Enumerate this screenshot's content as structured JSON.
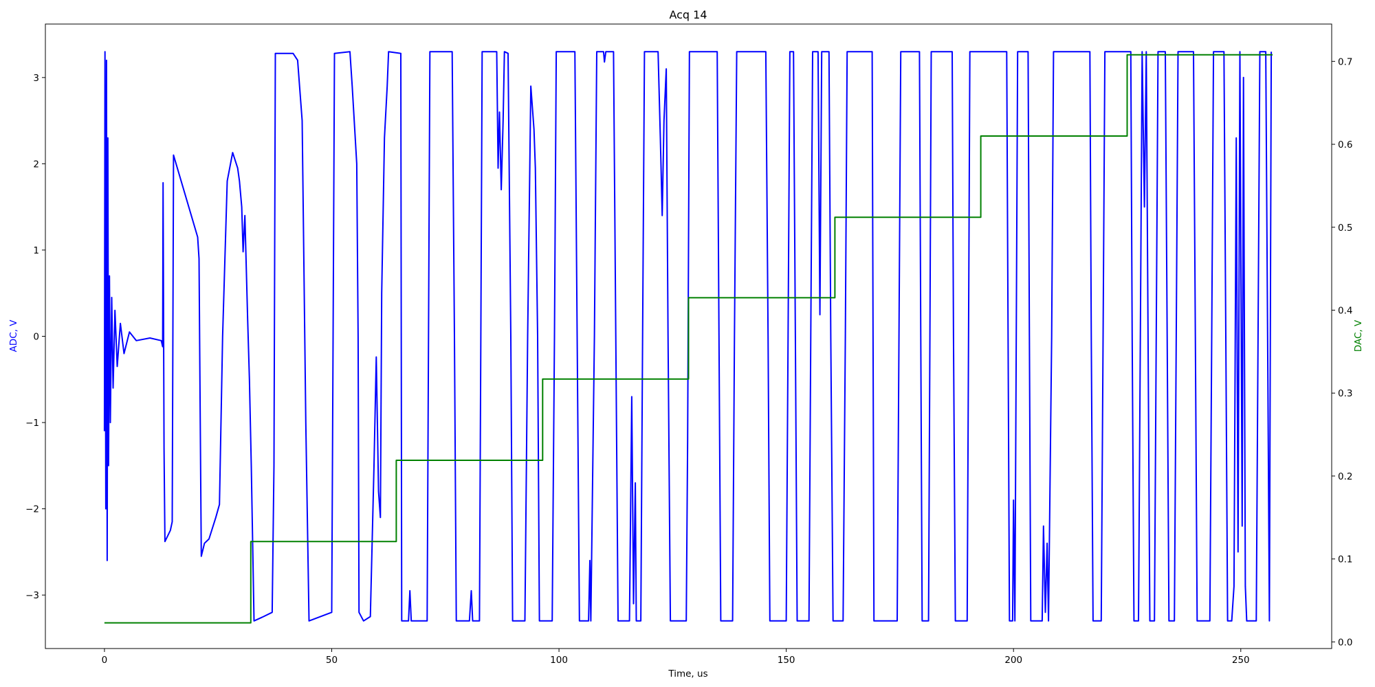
{
  "chart_data": {
    "type": "line",
    "title": "Acq 14",
    "xlabel": "Time, us",
    "ylabel_left": "ADC, V",
    "ylabel_right": "DAC, V",
    "xlim": [
      -13,
      270
    ],
    "ylim_left": [
      -3.62,
      3.62
    ],
    "ylim_right": [
      -0.008,
      0.745
    ],
    "x_ticks": [
      0,
      50,
      100,
      150,
      200,
      250
    ],
    "y_left_ticks": [
      -3,
      -2,
      -1,
      0,
      1,
      2,
      3
    ],
    "y_right_ticks": [
      0.0,
      0.1,
      0.2,
      0.3,
      0.4,
      0.5,
      0.6,
      0.7
    ],
    "x_tick_labels": [
      "0",
      "50",
      "100",
      "150",
      "200",
      "250"
    ],
    "y_left_tick_labels": [
      "−3",
      "−2",
      "−1",
      "0",
      "1",
      "2",
      "3"
    ],
    "y_right_tick_labels": [
      "0.0",
      "0.1",
      "0.2",
      "0.3",
      "0.4",
      "0.5",
      "0.6",
      "0.7"
    ],
    "grid": false,
    "colors": {
      "adc": "#0000ff",
      "dac": "#008000"
    },
    "series": [
      {
        "axis": "left",
        "points": [
          [
            0,
            -1.1
          ],
          [
            0.12,
            3.3
          ],
          [
            0.3,
            -2.0
          ],
          [
            0.45,
            3.2
          ],
          [
            0.6,
            -2.6
          ],
          [
            0.75,
            2.3
          ],
          [
            0.9,
            -1.5
          ],
          [
            1.1,
            0.7
          ],
          [
            1.3,
            -1.0
          ],
          [
            1.6,
            0.45
          ],
          [
            1.9,
            -0.6
          ],
          [
            2.3,
            0.3
          ],
          [
            2.8,
            -0.35
          ],
          [
            3.5,
            0.15
          ],
          [
            4.3,
            -0.2
          ],
          [
            5.5,
            0.05
          ],
          [
            7,
            -0.05
          ],
          [
            10,
            -0.02
          ],
          [
            12.5,
            -0.05
          ],
          [
            12.8,
            -0.12
          ],
          [
            12.9,
            1.78
          ],
          [
            13.1,
            -1.3
          ],
          [
            13.3,
            -2.38
          ],
          [
            14.5,
            -2.25
          ],
          [
            14.9,
            -2.15
          ],
          [
            15.2,
            2.1
          ],
          [
            20.5,
            1.15
          ],
          [
            20.8,
            0.9
          ],
          [
            21.0,
            -0.5
          ],
          [
            21.3,
            -2.55
          ],
          [
            22,
            -2.4
          ],
          [
            23,
            -2.35
          ],
          [
            24.5,
            -2.1
          ],
          [
            25.3,
            -1.95
          ],
          [
            26,
            0
          ],
          [
            27,
            1.8
          ],
          [
            28.2,
            2.13
          ],
          [
            29.3,
            1.95
          ],
          [
            29.7,
            1.8
          ],
          [
            30.2,
            1.5
          ],
          [
            30.5,
            0.98
          ],
          [
            30.9,
            1.4
          ],
          [
            31.5,
            0.2
          ],
          [
            31.9,
            -0.5
          ],
          [
            32.3,
            -1.5
          ],
          [
            32.9,
            -3.3
          ],
          [
            35,
            -3.25
          ],
          [
            36.9,
            -3.2
          ],
          [
            37.3,
            -1.5
          ],
          [
            37.6,
            3.28
          ],
          [
            41.5,
            3.28
          ],
          [
            42.5,
            3.2
          ],
          [
            43.5,
            2.5
          ],
          [
            44.3,
            -1
          ],
          [
            45,
            -3.3
          ],
          [
            50,
            -3.2
          ],
          [
            50.3,
            0
          ],
          [
            50.6,
            3.28
          ],
          [
            54,
            3.3
          ],
          [
            54.5,
            2.9
          ],
          [
            55.5,
            2.0
          ],
          [
            55.8,
            0
          ],
          [
            56,
            -3.2
          ],
          [
            57,
            -3.3
          ],
          [
            58.5,
            -3.25
          ],
          [
            59.3,
            -1.5
          ],
          [
            59.8,
            -0.24
          ],
          [
            60.3,
            -1.8
          ],
          [
            60.7,
            -2.1
          ],
          [
            61,
            0.5
          ],
          [
            61.6,
            2.3
          ],
          [
            62.2,
            2.9
          ],
          [
            62.5,
            3.3
          ],
          [
            65.2,
            3.28
          ],
          [
            65.4,
            -3.3
          ],
          [
            66.9,
            -3.3
          ],
          [
            67.2,
            -2.95
          ],
          [
            67.5,
            -3.3
          ],
          [
            71,
            -3.3
          ],
          [
            71.3,
            0
          ],
          [
            71.6,
            3.3
          ],
          [
            76.5,
            3.3
          ],
          [
            77,
            0
          ],
          [
            77.4,
            -3.3
          ],
          [
            80.3,
            -3.3
          ],
          [
            80.7,
            -2.95
          ],
          [
            81,
            -3.3
          ],
          [
            82.5,
            -3.3
          ],
          [
            82.8,
            0
          ],
          [
            83.1,
            3.3
          ],
          [
            86.3,
            3.3
          ],
          [
            86.6,
            1.95
          ],
          [
            86.9,
            2.6
          ],
          [
            87.3,
            1.7
          ],
          [
            87.7,
            2.5
          ],
          [
            88,
            3.3
          ],
          [
            88.8,
            3.28
          ],
          [
            89.4,
            0
          ],
          [
            89.8,
            -3.3
          ],
          [
            92.5,
            -3.3
          ],
          [
            93.1,
            0
          ],
          [
            93.8,
            2.9
          ],
          [
            94.5,
            2.4
          ],
          [
            94.8,
            1.95
          ],
          [
            95.3,
            0
          ],
          [
            95.7,
            -3.3
          ],
          [
            98.5,
            -3.3
          ],
          [
            99,
            0
          ],
          [
            99.4,
            3.3
          ],
          [
            103.5,
            3.3
          ],
          [
            104,
            0
          ],
          [
            104.5,
            -3.3
          ],
          [
            106.5,
            -3.3
          ],
          [
            106.8,
            -2.6
          ],
          [
            107,
            -3.3
          ],
          [
            107.8,
            0
          ],
          [
            108.3,
            3.3
          ],
          [
            109.8,
            3.3
          ],
          [
            110,
            3.18
          ],
          [
            110.3,
            3.3
          ],
          [
            112,
            3.3
          ],
          [
            112.5,
            0
          ],
          [
            113,
            -3.3
          ],
          [
            115.5,
            -3.3
          ],
          [
            116,
            -0.7
          ],
          [
            116.4,
            -3.1
          ],
          [
            116.8,
            -1.7
          ],
          [
            117,
            -3.3
          ],
          [
            118,
            -3.3
          ],
          [
            118.4,
            0
          ],
          [
            118.8,
            3.3
          ],
          [
            121.8,
            3.3
          ],
          [
            122.3,
            2.3
          ],
          [
            122.7,
            1.4
          ],
          [
            123.1,
            2.5
          ],
          [
            123.6,
            3.1
          ],
          [
            124,
            0
          ],
          [
            124.5,
            -3.3
          ],
          [
            128,
            -3.3
          ],
          [
            128.3,
            -1.2
          ],
          [
            128.7,
            3.3
          ],
          [
            134.8,
            3.3
          ],
          [
            135.2,
            0
          ],
          [
            135.6,
            -3.3
          ],
          [
            138.2,
            -3.3
          ],
          [
            138.6,
            0
          ],
          [
            139.1,
            3.3
          ],
          [
            145.5,
            3.3
          ],
          [
            146,
            0
          ],
          [
            146.4,
            -3.3
          ],
          [
            150,
            -3.3
          ],
          [
            150.4,
            0
          ],
          [
            150.8,
            3.3
          ],
          [
            151.6,
            3.3
          ],
          [
            152,
            0
          ],
          [
            152.4,
            -3.3
          ],
          [
            155,
            -3.3
          ],
          [
            155.4,
            0
          ],
          [
            155.8,
            3.3
          ],
          [
            157,
            3.3
          ],
          [
            157.4,
            0.25
          ],
          [
            157.8,
            3.3
          ],
          [
            159.4,
            3.3
          ],
          [
            159.8,
            0
          ],
          [
            160.3,
            -3.3
          ],
          [
            162.5,
            -3.3
          ],
          [
            163,
            0
          ],
          [
            163.4,
            3.3
          ],
          [
            168.9,
            3.3
          ],
          [
            169.1,
            0
          ],
          [
            169.3,
            -3.3
          ],
          [
            174.4,
            -3.3
          ],
          [
            174.8,
            0
          ],
          [
            175.2,
            3.3
          ],
          [
            179.3,
            3.3
          ],
          [
            179.6,
            0
          ],
          [
            179.9,
            -3.3
          ],
          [
            181.3,
            -3.3
          ],
          [
            181.6,
            0
          ],
          [
            181.9,
            3.3
          ],
          [
            186.5,
            3.3
          ],
          [
            186.8,
            0
          ],
          [
            187.2,
            -3.3
          ],
          [
            189.8,
            -3.3
          ],
          [
            190.1,
            0
          ],
          [
            190.4,
            3.3
          ],
          [
            198.5,
            3.3
          ],
          [
            198.8,
            0
          ],
          [
            199.1,
            -3.3
          ],
          [
            199.8,
            -3.3
          ],
          [
            200,
            -1.9
          ],
          [
            200.3,
            -3.3
          ],
          [
            200.6,
            0
          ],
          [
            200.9,
            3.3
          ],
          [
            203.2,
            3.3
          ],
          [
            203.5,
            0
          ],
          [
            203.8,
            -3.3
          ],
          [
            206.3,
            -3.3
          ],
          [
            206.6,
            -2.2
          ],
          [
            207,
            -3.2
          ],
          [
            207.4,
            -2.4
          ],
          [
            207.7,
            -3.3
          ],
          [
            208.4,
            0
          ],
          [
            208.8,
            3.3
          ],
          [
            216.8,
            3.3
          ],
          [
            217.1,
            0
          ],
          [
            217.5,
            -3.3
          ],
          [
            219.3,
            -3.3
          ],
          [
            219.7,
            0
          ],
          [
            220.1,
            3.3
          ],
          [
            225.8,
            3.3
          ],
          [
            226.1,
            0
          ],
          [
            226.5,
            -3.3
          ],
          [
            227.5,
            -3.3
          ],
          [
            227.9,
            0
          ],
          [
            228.3,
            3.3
          ],
          [
            228.8,
            1.5
          ],
          [
            229.2,
            3.3
          ],
          [
            229.6,
            0
          ],
          [
            230.0,
            -3.3
          ],
          [
            231,
            -3.3
          ],
          [
            231.4,
            0
          ],
          [
            231.8,
            3.3
          ],
          [
            233.4,
            3.3
          ],
          [
            233.8,
            0
          ],
          [
            234.2,
            -3.3
          ],
          [
            235.4,
            -3.3
          ],
          [
            235.8,
            0
          ],
          [
            236.2,
            3.3
          ],
          [
            239.6,
            3.3
          ],
          [
            240,
            0
          ],
          [
            240.4,
            -3.3
          ],
          [
            243.2,
            -3.3
          ],
          [
            243.6,
            0
          ],
          [
            244,
            3.3
          ],
          [
            246.3,
            3.3
          ],
          [
            246.7,
            0
          ],
          [
            247.1,
            -3.3
          ],
          [
            248,
            -3.3
          ],
          [
            248.5,
            -2.9
          ],
          [
            249,
            2.3
          ],
          [
            249.4,
            -2.5
          ],
          [
            249.8,
            3.3
          ],
          [
            250.3,
            -2.2
          ],
          [
            250.6,
            3.0
          ],
          [
            251,
            -2.9
          ],
          [
            251.3,
            -3.3
          ],
          [
            253.4,
            -3.3
          ],
          [
            253.8,
            0
          ],
          [
            254.2,
            3.3
          ],
          [
            255.5,
            3.3
          ],
          [
            255.9,
            0
          ],
          [
            256.3,
            -3.3
          ],
          [
            256.7,
            3.3
          ]
        ]
      },
      {
        "axis": "right",
        "points": [
          [
            0,
            0.023
          ],
          [
            32.2,
            0.023
          ],
          [
            32.2,
            0.121
          ],
          [
            64.2,
            0.121
          ],
          [
            64.2,
            0.219
          ],
          [
            96.4,
            0.219
          ],
          [
            96.4,
            0.317
          ],
          [
            128.5,
            0.317
          ],
          [
            128.5,
            0.415
          ],
          [
            160.7,
            0.415
          ],
          [
            160.7,
            0.512
          ],
          [
            192.8,
            0.512
          ],
          [
            192.8,
            0.61
          ],
          [
            225,
            0.61
          ],
          [
            225,
            0.708
          ],
          [
            257,
            0.708
          ]
        ]
      }
    ]
  }
}
